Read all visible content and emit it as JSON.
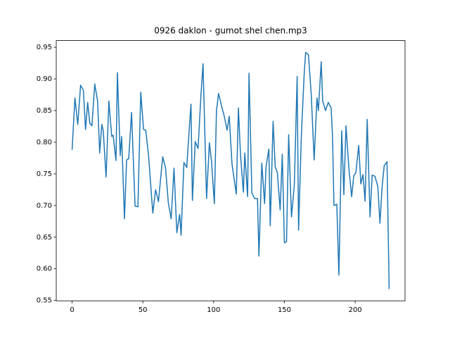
{
  "chart_data": {
    "type": "line",
    "title": "0926 daklon - gumot shel chen.mp3",
    "x": [
      0,
      2,
      4,
      6,
      8,
      9.5,
      11,
      12.5,
      14,
      16,
      18,
      19.5,
      21,
      22,
      24,
      26,
      28,
      29,
      31,
      32,
      34,
      35,
      37,
      38.5,
      40,
      42,
      44.5,
      46.5,
      48.5,
      50.5,
      52,
      54,
      57,
      59,
      61,
      64,
      66,
      68,
      70,
      72,
      74,
      76,
      77,
      79,
      81,
      83,
      84,
      85,
      87,
      89,
      91,
      92.5,
      95,
      97,
      98.5,
      100.5,
      102,
      103.5,
      105.5,
      107.5,
      109.5,
      111,
      113,
      116,
      117.5,
      119,
      121,
      122,
      124,
      125,
      127,
      129,
      131,
      132,
      134,
      136,
      137,
      139,
      140,
      142,
      143.5,
      145,
      147,
      148.5,
      150,
      151.5,
      153,
      155,
      157,
      159,
      160,
      162,
      164,
      165,
      167,
      169,
      171,
      173,
      174,
      176,
      177,
      179,
      181,
      183,
      184,
      185,
      187,
      188.5,
      190.5,
      192,
      193.5,
      195.5,
      197.5,
      199,
      200.5,
      202.5,
      204,
      205.5,
      207,
      208.5,
      210.5,
      212,
      214,
      216,
      217.5,
      219,
      220.5,
      222.5,
      224
    ],
    "series": [
      {
        "color": "#1f77b4",
        "values": [
          0.788,
          0.87,
          0.828,
          0.89,
          0.882,
          0.82,
          0.863,
          0.83,
          0.826,
          0.892,
          0.865,
          0.783,
          0.828,
          0.818,
          0.745,
          0.865,
          0.809,
          0.811,
          0.771,
          0.91,
          0.779,
          0.809,
          0.679,
          0.772,
          0.774,
          0.847,
          0.699,
          0.698,
          0.879,
          0.82,
          0.819,
          0.78,
          0.688,
          0.725,
          0.706,
          0.777,
          0.76,
          0.704,
          0.679,
          0.759,
          0.657,
          0.686,
          0.653,
          0.768,
          0.76,
          0.829,
          0.86,
          0.708,
          0.801,
          0.79,
          0.873,
          0.924,
          0.711,
          0.799,
          0.77,
          0.703,
          0.85,
          0.877,
          0.858,
          0.841,
          0.819,
          0.841,
          0.765,
          0.718,
          0.854,
          0.779,
          0.721,
          0.783,
          0.714,
          0.909,
          0.72,
          0.711,
          0.711,
          0.62,
          0.767,
          0.703,
          0.761,
          0.789,
          0.668,
          0.833,
          0.761,
          0.752,
          0.693,
          0.781,
          0.641,
          0.643,
          0.812,
          0.682,
          0.732,
          0.904,
          0.661,
          0.812,
          0.909,
          0.942,
          0.938,
          0.874,
          0.772,
          0.87,
          0.85,
          0.927,
          0.866,
          0.85,
          0.863,
          0.854,
          0.809,
          0.7,
          0.702,
          0.59,
          0.818,
          0.717,
          0.826,
          0.76,
          0.714,
          0.747,
          0.752,
          0.795,
          0.734,
          0.749,
          0.707,
          0.836,
          0.682,
          0.748,
          0.746,
          0.73,
          0.672,
          0.729,
          0.763,
          0.769,
          0.568
        ]
      }
    ],
    "xlim": [
      -11.2,
      235.2
    ],
    "ylim": [
      0.5494,
      0.9606
    ],
    "xticks": [
      0,
      50,
      100,
      150,
      200
    ],
    "yticks": [
      0.55,
      {
        "value": 0.6,
        "label": "0.60"
      },
      0.65,
      {
        "value": 0.7,
        "label": "0.70"
      },
      0.75,
      {
        "value": 0.8,
        "label": "0.80"
      },
      0.85,
      {
        "value": 0.9,
        "label": "0.90"
      },
      0.95
    ]
  }
}
